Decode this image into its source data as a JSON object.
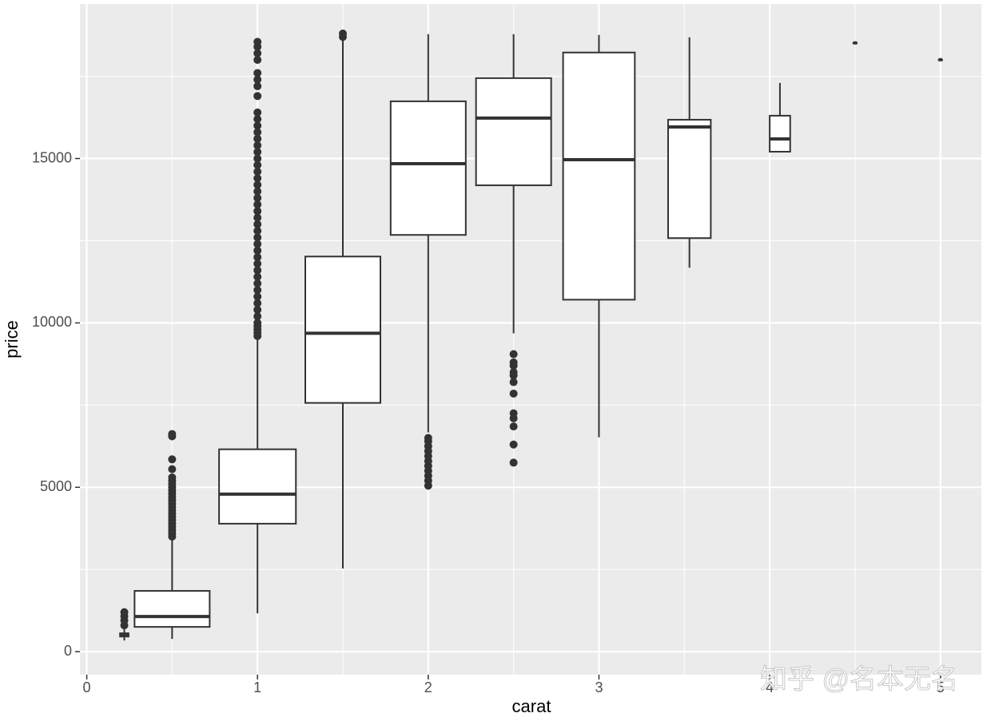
{
  "chart_data": {
    "type": "boxplot",
    "x_label": "carat",
    "y_label": "price",
    "xlim": [
      -0.04,
      5.24
    ],
    "ylim": [
      -700,
      19700
    ],
    "xticks": [
      0,
      1,
      2,
      3,
      4,
      5
    ],
    "yticks": [
      0,
      5000,
      10000,
      15000
    ],
    "xminor": [
      0.5,
      1.5,
      2.5,
      3.5,
      4.5
    ],
    "yminor": [
      2500,
      7500,
      12500,
      17500
    ],
    "grid": true,
    "color": "#333333",
    "fill": "#ffffff",
    "boxes": [
      {
        "x": 0.22,
        "width": 0.05,
        "low": 340,
        "q1": 460,
        "median": 500,
        "q3": 560,
        "high": 680,
        "outliers": [
          800,
          950,
          1080,
          1200
        ]
      },
      {
        "x": 0.5,
        "width": 0.44,
        "low": 389,
        "q1": 754,
        "median": 1070,
        "q3": 1849,
        "high": 3430,
        "outliers": [
          3500,
          3600,
          3700,
          3800,
          3900,
          4000,
          4100,
          4200,
          4300,
          4400,
          4500,
          4600,
          4700,
          4800,
          4900,
          5000,
          5100,
          5200,
          5300,
          5550,
          5850,
          6550,
          6620
        ]
      },
      {
        "x": 1.0,
        "width": 0.45,
        "low": 1168,
        "q1": 3893,
        "median": 4793,
        "q3": 6156,
        "high": 9560,
        "outliers": [
          9600,
          9700,
          9800,
          9900,
          10000,
          10200,
          10400,
          10600,
          10800,
          11000,
          11200,
          11400,
          11600,
          11800,
          12000,
          12200,
          12400,
          12600,
          12800,
          13000,
          13200,
          13400,
          13600,
          13800,
          14000,
          14200,
          14400,
          14600,
          14800,
          15000,
          15200,
          15400,
          15600,
          15800,
          16000,
          16200,
          16400,
          16900,
          17200,
          17400,
          17600,
          18000,
          18200,
          18400,
          18550
        ]
      },
      {
        "x": 1.5,
        "width": 0.44,
        "low": 2530,
        "q1": 7567,
        "median": 9684,
        "q3": 12019,
        "high": 18650,
        "outliers": [
          18700,
          18800
        ]
      },
      {
        "x": 2.0,
        "width": 0.44,
        "low": 6667,
        "q1": 12676,
        "median": 14842,
        "q3": 16740,
        "high": 18783,
        "outliers": [
          5050,
          5200,
          5350,
          5500,
          5650,
          5800,
          5950,
          6100,
          6250,
          6400,
          6500
        ]
      },
      {
        "x": 2.5,
        "width": 0.44,
        "low": 9684,
        "q1": 14185,
        "median": 16229,
        "q3": 17445,
        "high": 18783,
        "outliers": [
          5750,
          6300,
          6850,
          7100,
          7250,
          7850,
          8200,
          8400,
          8500,
          8700,
          8800,
          9050
        ]
      },
      {
        "x": 3.0,
        "width": 0.42,
        "low": 6521,
        "q1": 10706,
        "median": 14964,
        "q3": 18224,
        "high": 18759,
        "outliers": []
      },
      {
        "x": 3.53,
        "width": 0.25,
        "low": 11679,
        "q1": 12579,
        "median": 15961,
        "q3": 16180,
        "high": 18686,
        "outliers": []
      },
      {
        "x": 4.06,
        "width": 0.12,
        "low": 15207,
        "q1": 15207,
        "median": 15596,
        "q3": 16302,
        "high": 17299,
        "outliers": []
      },
      {
        "x": 4.5,
        "width": 0.02,
        "low": 18516,
        "q1": 18516,
        "median": 18516,
        "q3": 18516,
        "high": 18516,
        "outliers": []
      },
      {
        "x": 5.0,
        "width": 0.02,
        "low": 18005,
        "q1": 18005,
        "median": 18005,
        "q3": 18005,
        "high": 18005,
        "outliers": []
      }
    ]
  },
  "watermark": "知乎 @名本无名"
}
